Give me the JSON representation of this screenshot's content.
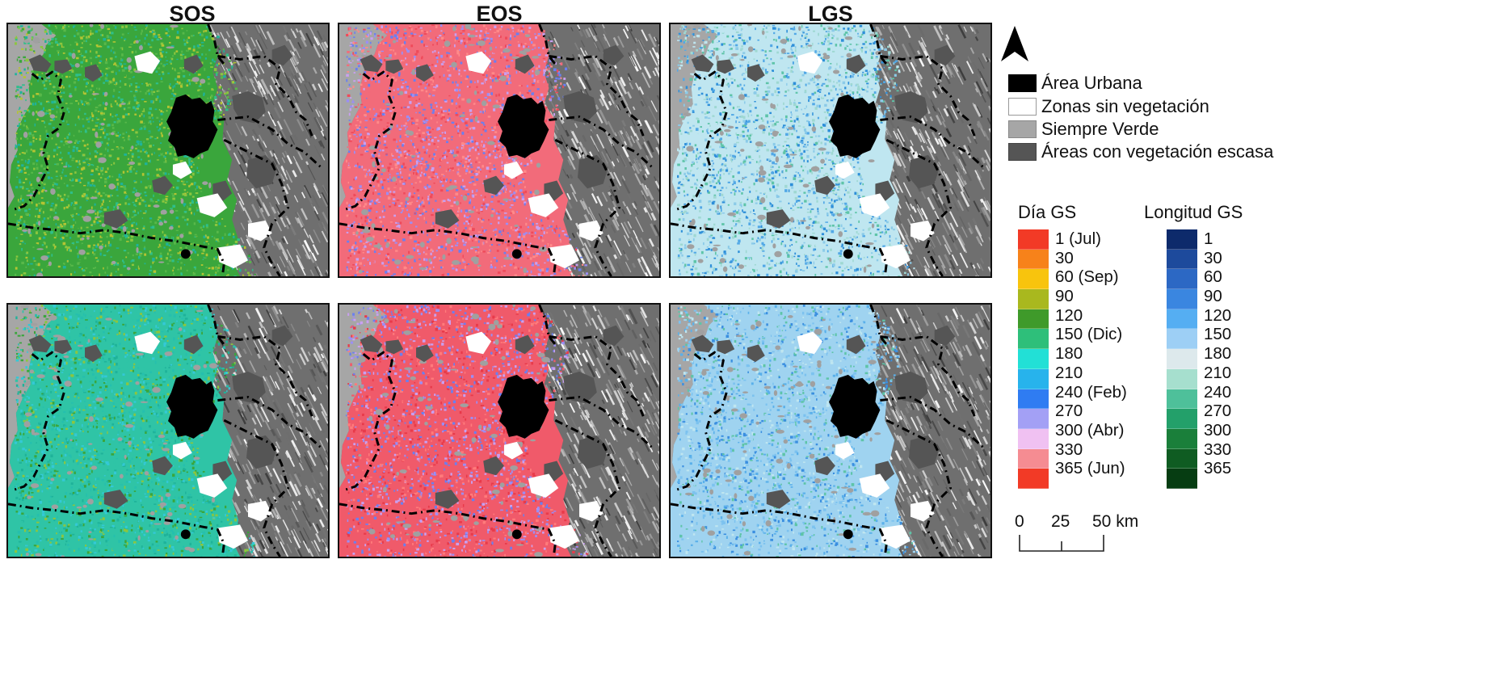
{
  "columns": [
    "SOS",
    "EOS",
    "LGS"
  ],
  "map_panels": [
    {
      "row": 1,
      "variable": "SOS",
      "palette": [
        "#3aa63c",
        "#58b84a",
        "#8cc63f",
        "#b4c433",
        "#2fbf8a",
        "#1fb39a"
      ]
    },
    {
      "row": 1,
      "variable": "EOS",
      "palette": [
        "#f26b7a",
        "#ff8a8a",
        "#c9a0f0",
        "#9b8ef5",
        "#6a7ff0",
        "#ef4a5a"
      ]
    },
    {
      "row": 1,
      "variable": "LGS",
      "palette": [
        "#bfe6f0",
        "#9fd8d2",
        "#5ec4a8",
        "#8ccbe8",
        "#52a8e6",
        "#2e8fd9"
      ]
    },
    {
      "row": 2,
      "variable": "SOS",
      "palette": [
        "#2fc4a6",
        "#25bfae",
        "#3aa63c",
        "#8cc63f",
        "#34c9d6",
        "#1fb39a"
      ]
    },
    {
      "row": 2,
      "variable": "EOS",
      "palette": [
        "#f05a6a",
        "#ff7b7b",
        "#c9a0f0",
        "#9b8ef5",
        "#6a7ff0",
        "#e83a4a"
      ]
    },
    {
      "row": 2,
      "variable": "LGS",
      "palette": [
        "#9fd3f0",
        "#7cc2ef",
        "#5ab0ea",
        "#bfe6f0",
        "#5ec4a8",
        "#3b8fe0"
      ]
    }
  ],
  "north_arrow_icon": "north-arrow-icon",
  "landcover_legend": [
    {
      "label": "Área Urbana",
      "color": "#000000"
    },
    {
      "label": "Zonas sin vegetación",
      "color": "#ffffff"
    },
    {
      "label": "Siempre Verde",
      "color": "#a6a6a6"
    },
    {
      "label": "Áreas con vegetación escasa",
      "color": "#555555"
    }
  ],
  "dia_gs": {
    "title": "Día GS",
    "items": [
      {
        "label": "1 (Jul)",
        "color": "#f23a26"
      },
      {
        "label": "30",
        "color": "#f7821a"
      },
      {
        "label": "60 (Sep)",
        "color": "#f8c40d"
      },
      {
        "label": "90",
        "color": "#a9b81e"
      },
      {
        "label": "120",
        "color": "#3f9a2a"
      },
      {
        "label": "150 (Dic)",
        "color": "#2ebf7a"
      },
      {
        "label": "180",
        "color": "#22e0d6"
      },
      {
        "label": "210",
        "color": "#27b3ec"
      },
      {
        "label": "240 (Feb)",
        "color": "#2f7cf2"
      },
      {
        "label": "270",
        "color": "#a3a0f5"
      },
      {
        "label": "300 (Abr)",
        "color": "#f0c1f2"
      },
      {
        "label": "330",
        "color": "#f58c92"
      },
      {
        "label": "365 (Jun)",
        "color": "#f23a26"
      }
    ]
  },
  "longitud_gs": {
    "title": "Longitud GS",
    "items": [
      {
        "label": "1",
        "color": "#0d2a6b"
      },
      {
        "label": "30",
        "color": "#1d4a9c"
      },
      {
        "label": "60",
        "color": "#2c68c4"
      },
      {
        "label": "90",
        "color": "#3a86e0"
      },
      {
        "label": "120",
        "color": "#55aef2"
      },
      {
        "label": "150",
        "color": "#9dcff5"
      },
      {
        "label": "180",
        "color": "#dde9ec"
      },
      {
        "label": "210",
        "color": "#a6dfce"
      },
      {
        "label": "240",
        "color": "#4ec09a"
      },
      {
        "label": "270",
        "color": "#23a06a"
      },
      {
        "label": "300",
        "color": "#1a7f3a"
      },
      {
        "label": "330",
        "color": "#0f5c22"
      },
      {
        "label": "365",
        "color": "#063d12"
      }
    ]
  },
  "scale_bar": {
    "ticks": [
      "0",
      "25",
      "50 km"
    ]
  }
}
